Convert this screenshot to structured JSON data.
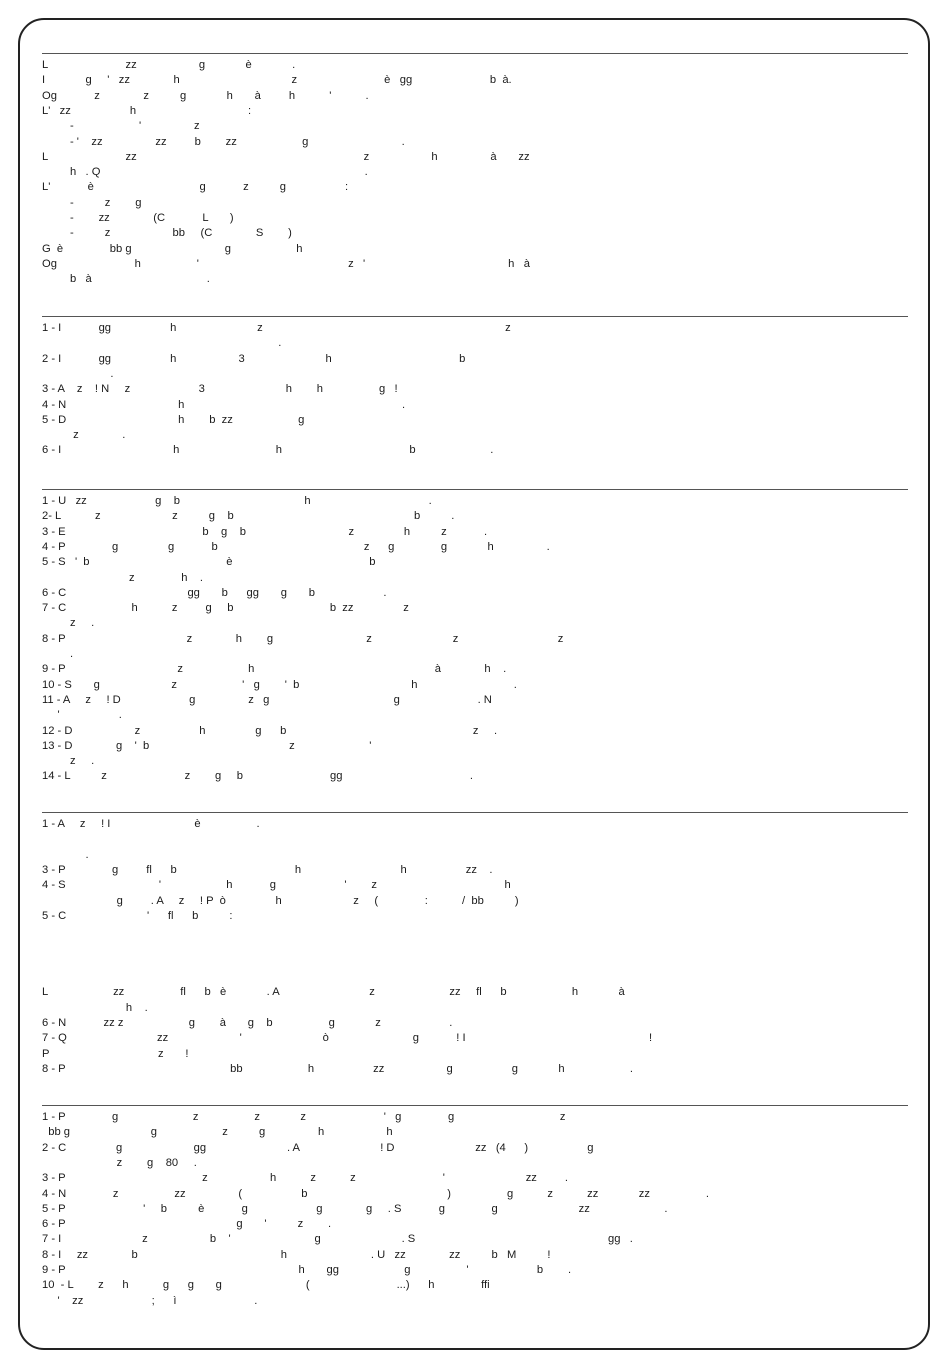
{
  "sections": [
    {
      "lines": [
        "L                         zz                    g             è             .",
        "I             g     '   zz              h                                    z                            è   gg                         b  à.",
        "Og            z              z          g             h       à         h           '           .",
        "L'   zz                   h                                    :",
        "         -                     '                 z",
        "         - '    zz                 zz         b        zz                     g                              .",
        "L                         zz                                                                         z                    h                 à       zz",
        "         h   . Q                                                                                     .",
        "L'            è                                  g            z          g                   :",
        "         -          z        g",
        "         -        zz              (C            L       )",
        "         -          z                    bb     (C              S        )",
        "G  è               bb g                              g                     h",
        "Og                         h                  '                                                z   '                                              h   à",
        "         b   à                                     ."
      ]
    },
    {
      "lines": [
        "1 - I            gg                   h                          z                                                                              z",
        "                                                                            .",
        "2 - I            gg                   h                    3                          h                                         b",
        "                      .",
        "3 - A    z    ! N     z                      3                          h        h                  g   !",
        "4 - N                                    h                                                                      .",
        "5 - D                                    h        b  zz                     g",
        "          z              .",
        "6 - I                                    h                               h                                         b                        ."
      ]
    },
    {
      "lines": [
        "1 - U   zz                      g    b                                        h                                      .",
        "2- L           z                       z          g    b                                                          b          .",
        "3 - E                                            b    g    b                                 z                h          z            .",
        "4 - P               g                g            b                                               z      g               g             h                 .",
        "5 - S   '  b                                            è                                            b",
        "                            z               h    .",
        "6 - C                                       gg       b      gg       g       b                      .",
        "7 - C                     h           z         g     b                               b  zz                z",
        "         z     .",
        "8 - P                                       z              h        g                              z                          z                                z",
        "         .",
        "9 - P                                    z                     h                                                          à              h    .",
        "10 - S       g                       z                     '   g        '  b                                    h                               .",
        "11 - A     z     ! D                      g                 z   g                                        g                         . N",
        "     '                   .",
        "12 - D                    z                   h                g      b                                                            z     .",
        "13 - D              g    '  b                                             z                        '",
        "         z     .",
        "14 - L          z                         z        g     b                            gg                                         ."
      ]
    },
    {
      "lines": [
        "1 - A     z     ! I                           è                  .",
        "",
        "              .",
        "3 - P               g         fl      b                                      h                                h                   zz    .",
        "4 - S                              '                     h            g                      '        z                                         h",
        "                        g         . A     z     ! P  ò                h                       z     (               :           /  bb          )",
        "5 - C                          '      fl      b          :",
        "",
        "",
        "",
        "",
        "L                     zz                  fl      b   è             . A                             z                        zz     fl      b                     h             à",
        "                           h    .",
        "6 - N            zz z                     g        à       g    b                  g             z                      .",
        "7 - Q                             zz                       '                          ò                           g            ! I                                                           !",
        "P                                   z       !",
        "8 - P                                                     bb                     h                   zz                    g                   g             h                     ."
      ]
    },
    {
      "lines": [
        "1 - P               g                        z                  z             z                         '   g               g                                  z",
        "  bb g                          g                     z          g                 h                    h",
        "2 - C                g                       gg                          . A                          ! D                          zz   (4      )                   g",
        "                        z        g    80     .",
        "3 - P                                            z                    h           z           z                            '                          zz         .",
        "4 - N               z                  zz                 (                   b                                             )                  g           z           zz             zz                  .",
        "5 - P                         '     b          è            g                      g              g     . S            g               g                          zz                        .",
        "6 - P                                                       g       '          z        .",
        "7 - I                          z                    b    '                           g                          . S                                                              gg   .",
        "8 - I     zz              b                                              h                           . U   zz              zz          b   M          !",
        "9 - P                                                                           h       gg                     g                  '                      b        .",
        "10  - L        z      h           g      g       g                           (                            ...)      h               ffi",
        "     '    zz                      ;      ì                         ."
      ]
    }
  ]
}
